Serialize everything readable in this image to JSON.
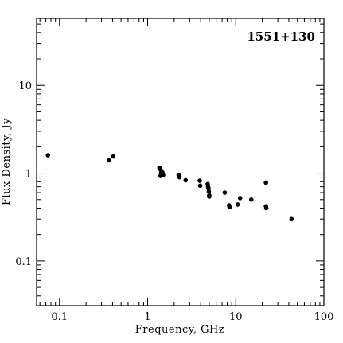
{
  "chart_data": {
    "type": "scatter",
    "title": "1551+130",
    "xlabel": "Frequency, GHz",
    "ylabel": "Flux Density, Jy",
    "x_scale": "log",
    "y_scale": "log",
    "xlim": [
      0.055,
      100
    ],
    "ylim": [
      0.031,
      58
    ],
    "x_ticks": [
      {
        "value": 0.1,
        "label": "0.1"
      },
      {
        "value": 1,
        "label": "1"
      },
      {
        "value": 10,
        "label": "10"
      },
      {
        "value": 100,
        "label": "100"
      }
    ],
    "y_ticks": [
      {
        "value": 0.1,
        "label": "0.1"
      },
      {
        "value": 1,
        "label": "1"
      },
      {
        "value": 10,
        "label": "10"
      }
    ],
    "grid": false,
    "points": [
      {
        "x": 0.074,
        "y": 1.6
      },
      {
        "x": 0.365,
        "y": 1.4
      },
      {
        "x": 0.408,
        "y": 1.55
      },
      {
        "x": 1.36,
        "y": 1.15
      },
      {
        "x": 1.4,
        "y": 1.1
      },
      {
        "x": 1.42,
        "y": 1.0
      },
      {
        "x": 1.4,
        "y": 0.93
      },
      {
        "x": 1.47,
        "y": 1.02
      },
      {
        "x": 1.5,
        "y": 0.95
      },
      {
        "x": 2.25,
        "y": 0.95
      },
      {
        "x": 2.3,
        "y": 0.9
      },
      {
        "x": 2.7,
        "y": 0.83
      },
      {
        "x": 3.9,
        "y": 0.82
      },
      {
        "x": 3.95,
        "y": 0.72
      },
      {
        "x": 4.8,
        "y": 0.75
      },
      {
        "x": 4.85,
        "y": 0.7
      },
      {
        "x": 4.9,
        "y": 0.67
      },
      {
        "x": 4.95,
        "y": 0.62
      },
      {
        "x": 5.0,
        "y": 0.56
      },
      {
        "x": 5.0,
        "y": 0.54
      },
      {
        "x": 7.5,
        "y": 0.6
      },
      {
        "x": 8.4,
        "y": 0.43
      },
      {
        "x": 8.5,
        "y": 0.41
      },
      {
        "x": 10.5,
        "y": 0.44
      },
      {
        "x": 11.2,
        "y": 0.52
      },
      {
        "x": 15.0,
        "y": 0.5
      },
      {
        "x": 22.0,
        "y": 0.78
      },
      {
        "x": 22.0,
        "y": 0.42
      },
      {
        "x": 22.2,
        "y": 0.4
      },
      {
        "x": 43.0,
        "y": 0.3
      }
    ]
  }
}
